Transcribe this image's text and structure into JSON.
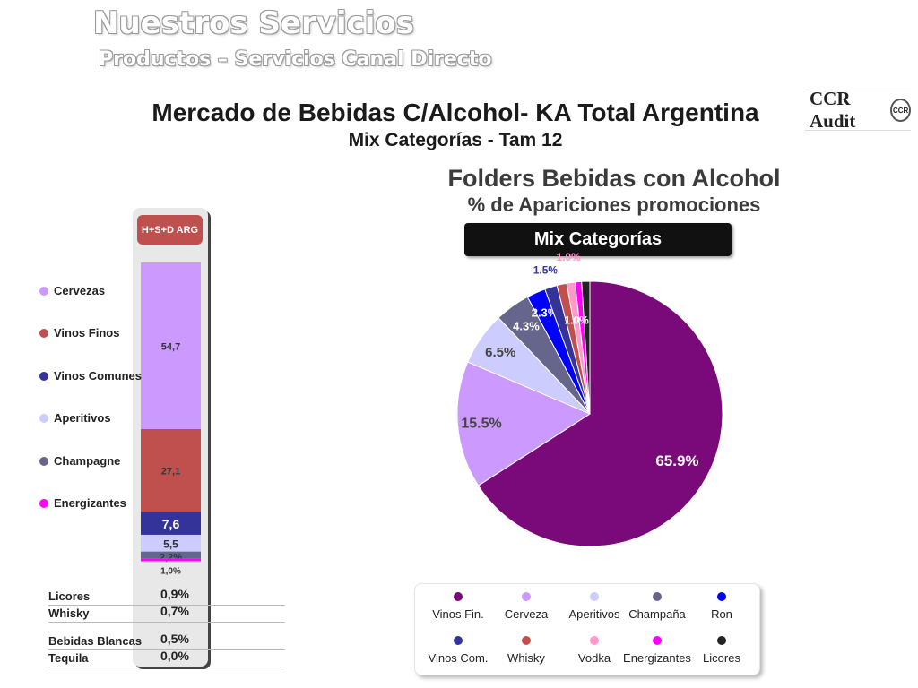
{
  "header": {
    "title": "Nuestros Servicios",
    "subtitle": "Productos – Servicios Canal Directo"
  },
  "main": {
    "title": "Mercado de Bebidas C/Alcohol- KA Total Argentina",
    "subtitle": "Mix Categorías - Tam 12"
  },
  "logo": {
    "text": "CCR Audit",
    "badge": "CCR"
  },
  "colors": {
    "vinos_fin": "#7a0a7a",
    "cerveza": "#cc99ff",
    "aperitivos": "#ccccff",
    "champana": "#66668c",
    "ron": "#0000ff",
    "vinos_com": "#333399",
    "whisky": "#c0504d",
    "vodka": "#ff99cc",
    "energizantes": "#ff00ff",
    "licores": "#222222",
    "hsd_box": "#c0504d",
    "mix_box": "#111111"
  },
  "chart_data": [
    {
      "type": "bar",
      "stacked": true,
      "title": "H+S+D ARG",
      "categories": [
        "H+S+D ARG"
      ],
      "series": [
        {
          "name": "Cervezas",
          "value": 54.7,
          "label": "54,7",
          "color": "#cc99ff"
        },
        {
          "name": "Vinos Finos",
          "value": 27.1,
          "label": "27,1",
          "color": "#c0504d"
        },
        {
          "name": "Vinos Comunes",
          "value": 7.6,
          "label": "7,6",
          "color": "#333399"
        },
        {
          "name": "Aperitivos",
          "value": 5.5,
          "label": "5,5",
          "color": "#ccccff"
        },
        {
          "name": "Champagne",
          "value": 2.2,
          "label": "2,2%",
          "color": "#66668c"
        },
        {
          "name": "Energizantes",
          "value": 1.0,
          "label": "1,0%",
          "color": "#ff00ff"
        }
      ],
      "legend": [
        "Cervezas",
        "Vinos Finos",
        "Vinos Comunes",
        "Aperitivos",
        "Champagne",
        "Energizantes"
      ],
      "extra_rows": [
        {
          "name": "Licores",
          "label": "0,9%"
        },
        {
          "name": "Whisky",
          "label": "0,7%"
        },
        {
          "name": "Bebidas Blancas",
          "label": "0,5%"
        },
        {
          "name": "Tequila",
          "label": "0,0%"
        }
      ]
    },
    {
      "type": "pie",
      "title": "Folders Bebidas con Alcohol",
      "subtitle": "% de Apariciones promociones",
      "header_label": "Mix Categorías",
      "slices": [
        {
          "name": "Vinos Fin.",
          "value": 65.9,
          "label": "65.9%",
          "color": "#7a0a7a"
        },
        {
          "name": "Cerveza",
          "value": 15.5,
          "label": "15.5%",
          "color": "#cc99ff"
        },
        {
          "name": "Aperitivos",
          "value": 6.5,
          "label": "6.5%",
          "color": "#ccccff"
        },
        {
          "name": "Champaña",
          "value": 4.3,
          "label": "4.3%",
          "color": "#66668c"
        },
        {
          "name": "Ron",
          "value": 2.3,
          "label": "2.3%",
          "color": "#0000ff"
        },
        {
          "name": "Vinos Com.",
          "value": 1.5,
          "label": "1.5%",
          "color": "#333399"
        },
        {
          "name": "Whisky",
          "value": 1.2,
          "label": "1.2%",
          "color": "#c0504d"
        },
        {
          "name": "Vodka",
          "value": 1.0,
          "label": "1.0%",
          "color": "#ff99cc"
        },
        {
          "name": "Energizantes",
          "value": 0.8,
          "label": "0.8%",
          "color": "#ff00ff"
        },
        {
          "name": "Licores",
          "value": 1.0,
          "label": "1.0%",
          "color": "#222222"
        }
      ],
      "legend": [
        "Vinos Fin.",
        "Cerveza",
        "Aperitivos",
        "Champaña",
        "Ron",
        "Vinos Com.",
        "Whisky",
        "Vodka",
        "Energizantes",
        "Licores"
      ]
    }
  ]
}
